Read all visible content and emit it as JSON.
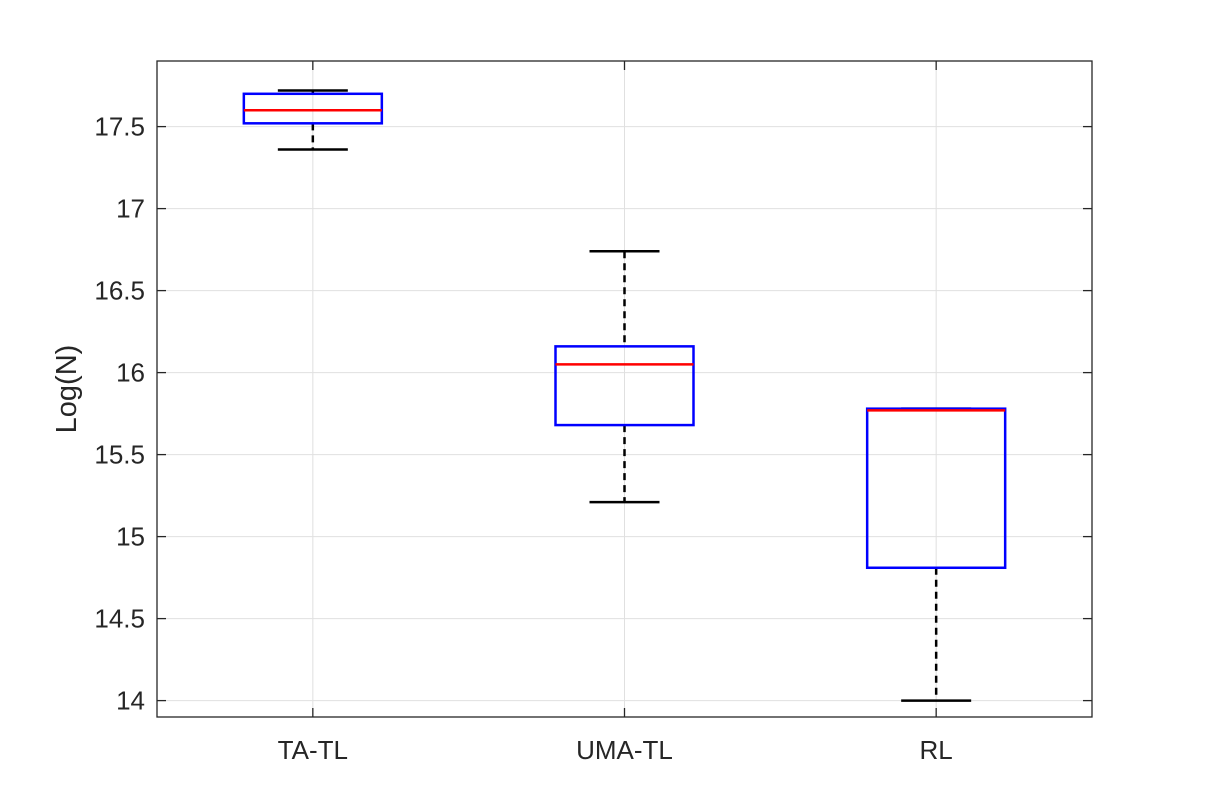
{
  "chart_data": {
    "type": "box",
    "title": "",
    "xlabel": "",
    "ylabel": "Log(N)",
    "categories": [
      "TA-TL",
      "UMA-TL",
      "RL"
    ],
    "boxes": [
      {
        "category": "TA-TL",
        "whisker_low": 17.36,
        "q1": 17.52,
        "median": 17.6,
        "q3": 17.7,
        "whisker_high": 17.72
      },
      {
        "category": "UMA-TL",
        "whisker_low": 15.21,
        "q1": 15.68,
        "median": 16.05,
        "q3": 16.16,
        "whisker_high": 16.74
      },
      {
        "category": "RL",
        "whisker_low": 14.0,
        "q1": 14.81,
        "median": 15.77,
        "q3": 15.78,
        "whisker_high": 15.78
      }
    ],
    "ylim": [
      13.9,
      17.9
    ],
    "yticks": [
      14,
      14.5,
      15,
      15.5,
      16,
      16.5,
      17,
      17.5
    ],
    "ytick_labels": [
      "14",
      "14.5",
      "15",
      "15.5",
      "16",
      "16.5",
      "17",
      "17.5"
    ],
    "grid": true,
    "colors": {
      "box": "#0000ff",
      "median": "#ff0000",
      "whisker": "#000000",
      "grid": "#e0e0e0",
      "axis": "#262626"
    }
  }
}
